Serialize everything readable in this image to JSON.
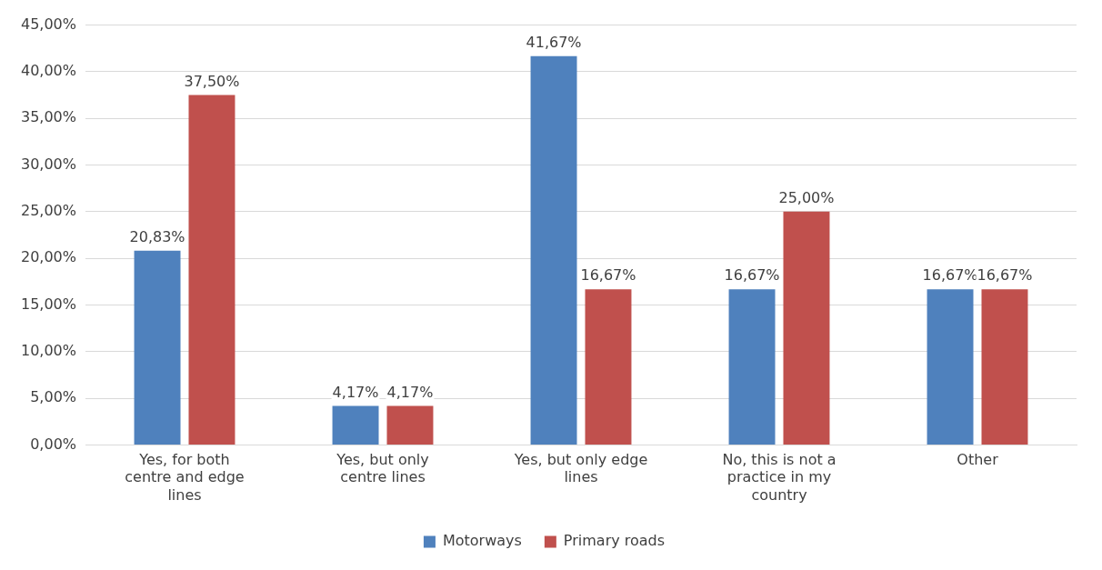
{
  "chart_data": {
    "type": "bar",
    "categories": [
      "Yes, for both centre and edge lines",
      "Yes, but only centre lines",
      "Yes, but only edge lines",
      "No, this is not a practice in my country",
      "Other"
    ],
    "series": [
      {
        "name": "Motorways",
        "color": "#4f81bd",
        "values": [
          20.83,
          4.17,
          41.67,
          16.67,
          16.67
        ],
        "value_labels": [
          "20,83%",
          "4,17%",
          "41,67%",
          "16,67%",
          "16,67%"
        ]
      },
      {
        "name": "Primary roads",
        "color": "#c0504d",
        "values": [
          37.5,
          4.17,
          16.67,
          25,
          16.67
        ],
        "value_labels": [
          "37,50%",
          "4,17%",
          "16,67%",
          "25,00%",
          "16,67%"
        ]
      }
    ],
    "ylim": [
      0,
      45
    ],
    "yticks": [
      {
        "value": 0,
        "label": "0,00%"
      },
      {
        "value": 5,
        "label": "5,00%"
      },
      {
        "value": 10,
        "label": "10,00%"
      },
      {
        "value": 15,
        "label": "15,00%"
      },
      {
        "value": 20,
        "label": "20,00%"
      },
      {
        "value": 25,
        "label": "25,00%"
      },
      {
        "value": 30,
        "label": "30,00%"
      },
      {
        "value": 35,
        "label": "35,00%"
      },
      {
        "value": 40,
        "label": "40,00%"
      },
      {
        "value": 45,
        "label": "45,00%"
      }
    ],
    "grid": "y",
    "legend": "bottom"
  }
}
